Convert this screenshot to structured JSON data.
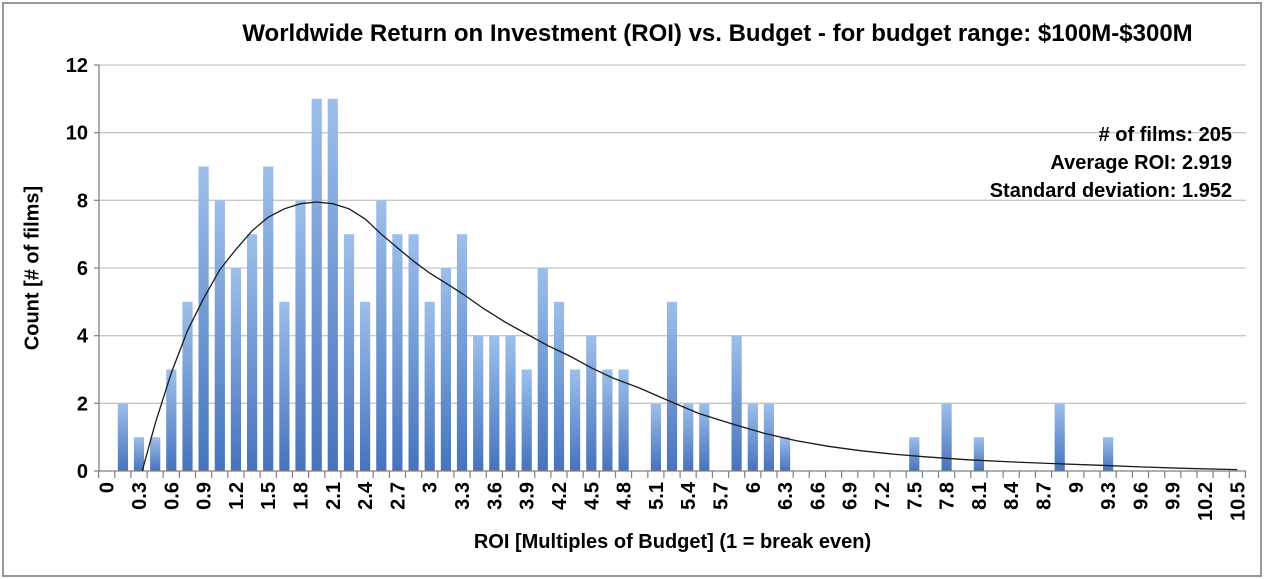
{
  "chart_data": {
    "type": "bar",
    "title": "Worldwide Return on Investment (ROI) vs. Budget - for budget range: $100M-$300M",
    "xlabel": "ROI [Multiples of Budget] (1 = break even)",
    "ylabel": "Count [# of films]",
    "bin_width": 0.15,
    "bins": [
      0,
      0.15,
      0.3,
      0.45,
      0.6,
      0.75,
      0.9,
      1.05,
      1.2,
      1.35,
      1.5,
      1.65,
      1.8,
      1.95,
      2.1,
      2.25,
      2.4,
      2.55,
      2.7,
      2.85,
      3,
      3.15,
      3.3,
      3.45,
      3.6,
      3.75,
      3.9,
      4.05,
      4.2,
      4.35,
      4.5,
      4.65,
      4.8,
      4.95,
      5.1,
      5.25,
      5.4,
      5.55,
      5.7,
      5.85,
      6,
      6.15,
      6.3,
      6.45,
      6.6,
      6.75,
      6.9,
      7.05,
      7.2,
      7.35,
      7.5,
      7.65,
      7.8,
      7.95,
      8.1,
      8.25,
      8.4,
      8.55,
      8.7,
      8.85,
      9,
      9.15,
      9.3,
      9.45,
      9.6,
      9.75,
      9.9,
      10.05,
      10.2,
      10.35,
      10.5
    ],
    "values": [
      0,
      2,
      1,
      1,
      3,
      5,
      9,
      8,
      6,
      7,
      9,
      5,
      8,
      11,
      11,
      7,
      5,
      8,
      7,
      7,
      5,
      6,
      7,
      4,
      4,
      4,
      3,
      6,
      5,
      3,
      4,
      3,
      3,
      0,
      2,
      5,
      2,
      2,
      0,
      4,
      2,
      2,
      1,
      0,
      0,
      0,
      0,
      0,
      0,
      0,
      1,
      0,
      2,
      0,
      1,
      0,
      0,
      0,
      0,
      2,
      0,
      0,
      1,
      0,
      0,
      0,
      0,
      0,
      0,
      0,
      0
    ],
    "x_tick_labels": [
      "0",
      "0.3",
      "0.6",
      "0.9",
      "1.2",
      "1.5",
      "1.8",
      "2.1",
      "2.4",
      "2.7",
      "3",
      "3.3",
      "3.6",
      "3.9",
      "4.2",
      "4.5",
      "4.8",
      "5.1",
      "5.4",
      "5.7",
      "6",
      "6.3",
      "6.6",
      "6.9",
      "7.2",
      "7.5",
      "7.8",
      "8.1",
      "8.4",
      "8.7",
      "9",
      "9.3",
      "9.6",
      "9.9",
      "10.2",
      "10.5"
    ],
    "yticks": [
      0,
      2,
      4,
      6,
      8,
      10,
      12
    ],
    "ylim": [
      0,
      12
    ],
    "grid": true,
    "legend": "none",
    "annotations": [
      "# of films: 205",
      "Average ROI: 2.919",
      "Standard deviation: 1.952"
    ],
    "curve": {
      "label": "fitted-distribution-curve",
      "color": "#1a1a1a",
      "points": [
        [
          0.33,
          0
        ],
        [
          0.45,
          1.4
        ],
        [
          0.6,
          2.9
        ],
        [
          0.75,
          4.15
        ],
        [
          0.9,
          5.1
        ],
        [
          1.05,
          5.95
        ],
        [
          1.2,
          6.55
        ],
        [
          1.35,
          7.1
        ],
        [
          1.5,
          7.5
        ],
        [
          1.65,
          7.75
        ],
        [
          1.8,
          7.9
        ],
        [
          1.95,
          7.95
        ],
        [
          2.1,
          7.9
        ],
        [
          2.25,
          7.75
        ],
        [
          2.4,
          7.45
        ],
        [
          2.55,
          7.0
        ],
        [
          2.7,
          6.6
        ],
        [
          2.85,
          6.2
        ],
        [
          3.0,
          5.85
        ],
        [
          3.15,
          5.55
        ],
        [
          3.3,
          5.25
        ],
        [
          3.5,
          4.8
        ],
        [
          3.7,
          4.4
        ],
        [
          3.9,
          4.05
        ],
        [
          4.1,
          3.7
        ],
        [
          4.3,
          3.4
        ],
        [
          4.5,
          3.05
        ],
        [
          4.7,
          2.75
        ],
        [
          4.95,
          2.45
        ],
        [
          5.2,
          2.1
        ],
        [
          5.5,
          1.7
        ],
        [
          5.8,
          1.4
        ],
        [
          6.1,
          1.12
        ],
        [
          6.4,
          0.9
        ],
        [
          6.7,
          0.73
        ],
        [
          7.0,
          0.6
        ],
        [
          7.3,
          0.5
        ],
        [
          7.6,
          0.42
        ],
        [
          8.0,
          0.33
        ],
        [
          8.4,
          0.27
        ],
        [
          8.8,
          0.22
        ],
        [
          9.2,
          0.17
        ],
        [
          9.6,
          0.12
        ],
        [
          10.0,
          0.08
        ],
        [
          10.5,
          0.04
        ]
      ]
    },
    "colors": {
      "bar_top": "#9DBFEA",
      "bar_bottom": "#4673BC",
      "gridline": "#C8C8C8",
      "axis": "#808080",
      "text": "#000000"
    }
  }
}
